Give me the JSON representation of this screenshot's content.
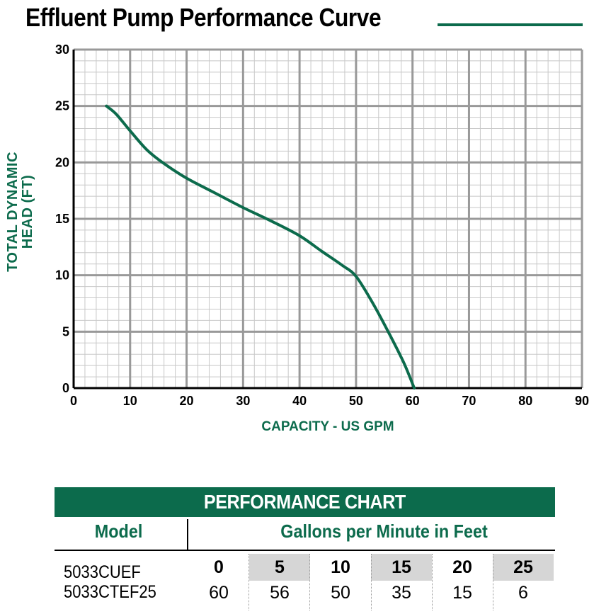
{
  "title": "Effluent Pump Performance Curve",
  "colors": {
    "accent": "#0c6b4c",
    "grid_major": "#999999",
    "grid_minor": "#c8c8c8",
    "gpm_cell_fill": "#d6d6d6"
  },
  "chart_data": {
    "type": "line",
    "title": "Effluent Pump Performance Curve",
    "xlabel": "CAPACITY - US GPM",
    "ylabel_lines": [
      "TOTAL DYNAMIC",
      "HEAD (FT)"
    ],
    "xlim": [
      0,
      90
    ],
    "ylim": [
      0,
      30
    ],
    "x_ticks": [
      0,
      10,
      20,
      30,
      40,
      50,
      60,
      70,
      80,
      90
    ],
    "y_ticks": [
      0,
      5,
      10,
      15,
      20,
      25,
      30
    ],
    "grid": true,
    "series": [
      {
        "x": [
          5.8,
          7.5,
          10,
          13,
          16,
          20,
          25,
          30,
          35,
          40,
          44,
          47.5,
          50,
          53,
          56,
          58.5,
          60.3
        ],
        "y": [
          25,
          24.3,
          22.8,
          21.1,
          19.9,
          18.6,
          17.3,
          16.0,
          14.8,
          13.5,
          12.1,
          10.9,
          9.9,
          7.5,
          4.7,
          2.2,
          0
        ]
      }
    ]
  },
  "performance_chart": {
    "header": "PERFORMANCE CHART",
    "col_model": "Model",
    "col_gpm": "Gallons per Minute in Feet",
    "models": [
      "5033CUEF",
      "5033CTEF25"
    ],
    "gpm_values": [
      "0",
      "5",
      "10",
      "15",
      "20",
      "25"
    ],
    "head_values": [
      "60",
      "56",
      "50",
      "35",
      "15",
      "6"
    ]
  }
}
